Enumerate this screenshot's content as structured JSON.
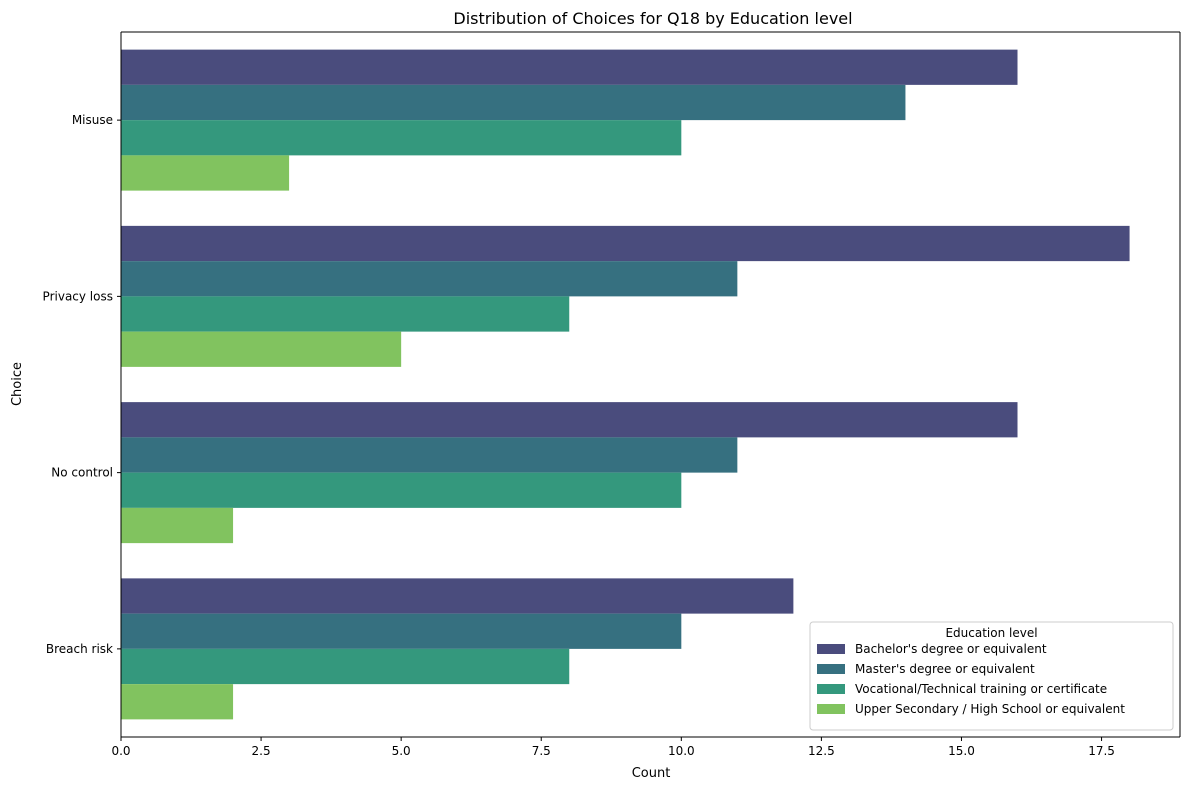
{
  "chart_data": {
    "type": "bar",
    "orientation": "horizontal",
    "title": "Distribution of Choices for Q18 by Education level",
    "xlabel": "Count",
    "ylabel": "Choice",
    "categories": [
      "Misuse",
      "Privacy loss",
      "No control",
      "Breach risk"
    ],
    "series": [
      {
        "name": "Bachelor's degree or equivalent",
        "color": "#4a4c7d",
        "values": [
          16,
          18,
          16,
          12
        ]
      },
      {
        "name": "Master's degree or equivalent",
        "color": "#367080",
        "values": [
          14,
          11,
          11,
          10
        ]
      },
      {
        "name": "Vocational/Technical training or certificate",
        "color": "#34987d",
        "values": [
          10,
          8,
          10,
          8
        ]
      },
      {
        "name": "Upper Secondary / High School or equivalent",
        "color": "#81c35f",
        "values": [
          3,
          5,
          2,
          2
        ]
      }
    ],
    "xlim": [
      0,
      18.9
    ],
    "xticks": [
      0.0,
      2.5,
      5.0,
      7.5,
      10.0,
      12.5,
      15.0,
      17.5
    ],
    "xtick_labels": [
      "0.0",
      "2.5",
      "5.0",
      "7.5",
      "10.0",
      "12.5",
      "15.0",
      "17.5"
    ],
    "legend": {
      "title": "Education level",
      "placement": "lower-right"
    },
    "grid": false
  }
}
